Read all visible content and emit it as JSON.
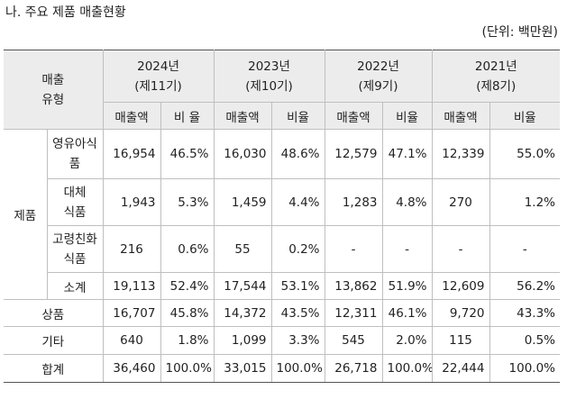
{
  "title": "나. 주요 제품 매출현황",
  "unit": "(단위: 백만원)",
  "header": {
    "type_label": "매출\n유형",
    "years": [
      {
        "year": "2024년",
        "period": "(제11기)"
      },
      {
        "year": "2023년",
        "period": "(제10기)"
      },
      {
        "year": "2022년",
        "period": "(제9기)"
      },
      {
        "year": "2021년",
        "period": "(제8기)"
      }
    ],
    "sales_label": "매출액",
    "ratio_labels": [
      "비 율",
      "비율",
      "비율",
      "비율"
    ]
  },
  "group_label": "제품",
  "product_rows": [
    {
      "label": "영유아식\n품",
      "cells": [
        "16,954",
        "46.5%",
        "16,030",
        "48.6%",
        "12,579",
        "47.1%",
        "12,339",
        "55.0%"
      ]
    },
    {
      "label": "대체\n식품",
      "cells": [
        "1,943",
        "5.3%",
        "1,459",
        "4.4%",
        "1,283",
        "4.8%",
        "270",
        "1.2%"
      ]
    },
    {
      "label": "고령친화\n식품",
      "cells": [
        "216",
        "0.6%",
        "55",
        "0.2%",
        "-",
        "-",
        "-",
        "-"
      ]
    },
    {
      "label": "소계",
      "cells": [
        "19,113",
        "52.4%",
        "17,544",
        "53.1%",
        "13,862",
        "51.9%",
        "12,609",
        "56.2%"
      ]
    }
  ],
  "other_rows": [
    {
      "label": "상품",
      "cells": [
        "16,707",
        "45.8%",
        "14,372",
        "43.5%",
        "12,311",
        "46.1%",
        "9,720",
        "43.3%"
      ]
    },
    {
      "label": "기타",
      "cells": [
        "640",
        "1.8%",
        "1,099",
        "3.3%",
        "545",
        "2.0%",
        "115",
        "0.5%"
      ]
    },
    {
      "label": "합계",
      "cells": [
        "36,460",
        "100.0%",
        "33,015",
        "100.0%",
        "26,718",
        "100.0%",
        "22,444",
        "100.0%"
      ]
    }
  ]
}
